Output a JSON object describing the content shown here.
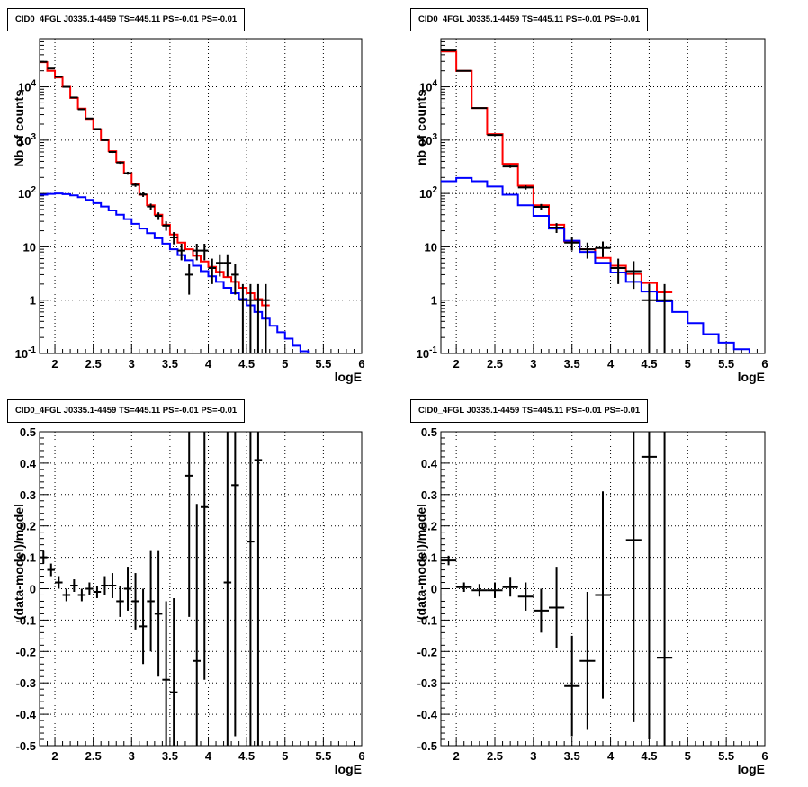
{
  "chart_data": [
    {
      "type": "histogram",
      "title": "CID0_4FGL J0335.1-4459 TS=445.11 PS=-0.01 PS=-0.01",
      "xlabel": "logE",
      "ylabel": "Nb of counts",
      "xlim": [
        1.8,
        6.0
      ],
      "ylim": [
        0.1,
        80000
      ],
      "yscale": "log",
      "grid": true,
      "x_ticks": [
        "2",
        "2.5",
        "3",
        "3.5",
        "4",
        "4.5",
        "5",
        "5.5",
        "6"
      ],
      "y_ticks": [
        "10^-1",
        "1",
        "10",
        "10^2",
        "10^3",
        "10^4"
      ],
      "series": [
        {
          "color": "#ff0000",
          "style": "step",
          "bin_width": 0.1,
          "x_start": 1.8,
          "values": [
            29000,
            20000,
            15000,
            10000,
            6200,
            3900,
            2500,
            1600,
            1000,
            620,
            390,
            240,
            150,
            95,
            60,
            40,
            26,
            17,
            12,
            9,
            6.8,
            5.3,
            4.2,
            3.4,
            2.7,
            2.2,
            1.7,
            1.35,
            1.05,
            0.8
          ]
        },
        {
          "color": "#0000ff",
          "style": "step",
          "bin_width": 0.1,
          "x_start": 1.8,
          "values": [
            95,
            98,
            100,
            97,
            92,
            85,
            76,
            66,
            57,
            48,
            40,
            33,
            27,
            22,
            18,
            14.5,
            11.5,
            9,
            7,
            5.6,
            4.4,
            3.5,
            2.8,
            2.2,
            1.7,
            1.35,
            1.05,
            0.8,
            0.6,
            0.45,
            0.33,
            0.25,
            0.19,
            0.14,
            0.11,
            0.1,
            0.1,
            0.1,
            0.1,
            0.1,
            0.1,
            0.1
          ]
        },
        {
          "color": "#000000",
          "style": "errorbar",
          "bin_width": 0.1,
          "points": [
            [
              1.85,
              29500
            ],
            [
              1.95,
              22000
            ],
            [
              2.05,
              15500
            ],
            [
              2.15,
              10000
            ],
            [
              2.25,
              6300
            ],
            [
              2.35,
              3800
            ],
            [
              2.45,
              2550
            ],
            [
              2.55,
              1620
            ],
            [
              2.65,
              1000
            ],
            [
              2.75,
              600
            ],
            [
              2.85,
              380
            ],
            [
              2.95,
              240
            ],
            [
              3.05,
              145
            ],
            [
              3.15,
              96
            ],
            [
              3.25,
              57
            ],
            [
              3.35,
              38
            ],
            [
              3.45,
              25
            ],
            [
              3.55,
              15
            ],
            [
              3.65,
              8.5
            ],
            [
              3.75,
              3
            ],
            [
              3.85,
              8.5
            ],
            [
              3.95,
              8.5
            ],
            [
              4.05,
              4
            ],
            [
              4.15,
              5
            ],
            [
              4.25,
              5
            ],
            [
              4.35,
              3
            ],
            [
              4.45,
              1
            ],
            [
              4.55,
              1
            ],
            [
              4.65,
              1
            ],
            [
              4.75,
              1
            ]
          ]
        }
      ]
    },
    {
      "type": "histogram",
      "title": "CID0_4FGL J0335.1-4459 TS=445.11 PS=-0.01 PS=-0.01",
      "xlabel": "logE",
      "ylabel": "nb of counts",
      "xlim": [
        1.8,
        6.0
      ],
      "ylim": [
        0.1,
        80000
      ],
      "yscale": "log",
      "grid": true,
      "x_ticks": [
        "2",
        "2.5",
        "3",
        "3.5",
        "4",
        "4.5",
        "5",
        "5.5",
        "6"
      ],
      "y_ticks": [
        "10^-1",
        "1",
        "10",
        "10^2",
        "10^3",
        "10^4"
      ],
      "series": [
        {
          "color": "#ff0000",
          "style": "step",
          "bin_width": 0.2,
          "x_start": 1.8,
          "values": [
            46000,
            20000,
            4000,
            1300,
            360,
            140,
            60,
            26,
            12.5,
            9,
            6.2,
            4.4,
            3.1,
            2.1,
            1.4
          ]
        },
        {
          "color": "#0000ff",
          "style": "step",
          "bin_width": 0.2,
          "x_start": 1.8,
          "values": [
            170,
            195,
            170,
            135,
            95,
            60,
            38,
            22,
            13,
            8,
            5,
            3.3,
            2.2,
            1.45,
            0.95,
            0.6,
            0.37,
            0.23,
            0.16,
            0.12,
            0.1
          ]
        },
        {
          "color": "#000000",
          "style": "errorbar",
          "bin_width": 0.2,
          "points": [
            [
              1.9,
              48000
            ],
            [
              2.1,
              20000
            ],
            [
              2.3,
              4000
            ],
            [
              2.5,
              1250
            ],
            [
              2.7,
              320
            ],
            [
              2.9,
              130
            ],
            [
              3.1,
              56
            ],
            [
              3.3,
              23
            ],
            [
              3.5,
              12
            ],
            [
              3.7,
              9
            ],
            [
              3.9,
              9.5
            ],
            [
              4.1,
              4
            ],
            [
              4.3,
              3.5
            ],
            [
              4.5,
              1
            ],
            [
              4.7,
              1
            ]
          ]
        }
      ]
    },
    {
      "type": "scatter",
      "title": "CID0_4FGL J0335.1-4459 TS=445.11 PS=-0.01 PS=-0.01",
      "xlabel": "logE",
      "ylabel": "(data-model)/model",
      "xlim": [
        1.8,
        6.0
      ],
      "ylim": [
        -0.5,
        0.5
      ],
      "grid": true,
      "x_ticks": [
        "2",
        "2.5",
        "3",
        "3.5",
        "4",
        "4.5",
        "5",
        "5.5",
        "6"
      ],
      "y_ticks": [
        "-0.5",
        "-0.4",
        "-0.3",
        "-0.2",
        "-0.1",
        "0",
        "0.1",
        "0.2",
        "0.3",
        "0.4",
        "0.5"
      ],
      "bin_width": 0.1,
      "points": [
        {
          "x": 1.85,
          "y": 0.1,
          "err": 0.02
        },
        {
          "x": 1.95,
          "y": 0.06,
          "err": 0.02
        },
        {
          "x": 2.05,
          "y": 0.02,
          "err": 0.02
        },
        {
          "x": 2.15,
          "y": -0.02,
          "err": 0.02
        },
        {
          "x": 2.25,
          "y": 0.01,
          "err": 0.02
        },
        {
          "x": 2.35,
          "y": -0.02,
          "err": 0.02
        },
        {
          "x": 2.45,
          "y": 0.0,
          "err": 0.02
        },
        {
          "x": 2.55,
          "y": -0.01,
          "err": 0.02
        },
        {
          "x": 2.65,
          "y": 0.01,
          "err": 0.03
        },
        {
          "x": 2.75,
          "y": 0.01,
          "err": 0.04
        },
        {
          "x": 2.85,
          "y": -0.04,
          "err": 0.05
        },
        {
          "x": 2.95,
          "y": 0.0,
          "err": 0.07
        },
        {
          "x": 3.05,
          "y": -0.04,
          "err": 0.09
        },
        {
          "x": 3.15,
          "y": -0.12,
          "err": 0.12
        },
        {
          "x": 3.25,
          "y": -0.04,
          "err": 0.16
        },
        {
          "x": 3.35,
          "y": -0.08,
          "err": 0.2
        },
        {
          "x": 3.45,
          "y": -0.29,
          "err": 0.25
        },
        {
          "x": 3.55,
          "y": -0.33,
          "err": 0.3
        },
        {
          "x": 3.75,
          "y": 0.36,
          "err": 0.45
        },
        {
          "x": 3.85,
          "y": -0.23,
          "err": 0.5
        },
        {
          "x": 3.95,
          "y": 0.26,
          "err": 0.55
        },
        {
          "x": 4.25,
          "y": 0.02,
          "err": 0.7
        },
        {
          "x": 4.35,
          "y": 0.33,
          "err": 0.8
        },
        {
          "x": 4.55,
          "y": 0.15,
          "err": 0.9
        },
        {
          "x": 4.65,
          "y": 0.41,
          "err": 1.0
        }
      ]
    },
    {
      "type": "scatter",
      "title": "CID0_4FGL J0335.1-4459 TS=445.11 PS=-0.01 PS=-0.01",
      "xlabel": "logE",
      "ylabel": "(data-model)/model",
      "xlim": [
        1.8,
        6.0
      ],
      "ylim": [
        -0.5,
        0.5
      ],
      "grid": true,
      "x_ticks": [
        "2",
        "2.5",
        "3",
        "3.5",
        "4",
        "4.5",
        "5",
        "5.5",
        "6"
      ],
      "y_ticks": [
        "-0.5",
        "-0.4",
        "-0.3",
        "-0.2",
        "-0.1",
        "0",
        "0.1",
        "0.2",
        "0.3",
        "0.4",
        "0.5"
      ],
      "bin_width": 0.2,
      "points": [
        {
          "x": 1.9,
          "y": 0.09,
          "err": 0.015
        },
        {
          "x": 2.1,
          "y": 0.005,
          "err": 0.015
        },
        {
          "x": 2.3,
          "y": -0.005,
          "err": 0.02
        },
        {
          "x": 2.5,
          "y": -0.005,
          "err": 0.025
        },
        {
          "x": 2.7,
          "y": 0.005,
          "err": 0.03
        },
        {
          "x": 2.9,
          "y": -0.025,
          "err": 0.045
        },
        {
          "x": 3.1,
          "y": -0.07,
          "err": 0.07
        },
        {
          "x": 3.3,
          "y": -0.06,
          "err": 0.13
        },
        {
          "x": 3.5,
          "y": -0.31,
          "err": 0.16
        },
        {
          "x": 3.7,
          "y": -0.23,
          "err": 0.22
        },
        {
          "x": 3.9,
          "y": -0.02,
          "err": 0.33
        },
        {
          "x": 4.3,
          "y": 0.155,
          "err": 0.58
        },
        {
          "x": 4.5,
          "y": 0.42,
          "err": 0.9
        },
        {
          "x": 4.7,
          "y": -0.22,
          "err": 1.0
        }
      ]
    }
  ]
}
